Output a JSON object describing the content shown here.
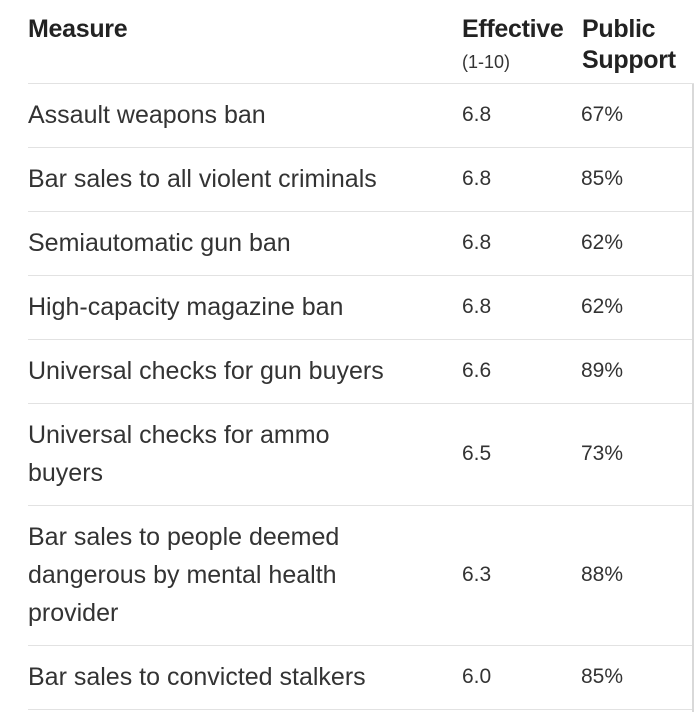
{
  "table": {
    "headers": {
      "measure": "Measure",
      "effective": "Effective",
      "effective_scale": "(1-10)",
      "public_support": "Public Support"
    },
    "rows": [
      {
        "measure": "Assault weapons ban",
        "effective": "6.8",
        "support": "67%"
      },
      {
        "measure": "Bar sales to all violent criminals",
        "effective": "6.8",
        "support": "85%"
      },
      {
        "measure": "Semiautomatic gun ban",
        "effective": "6.8",
        "support": "62%"
      },
      {
        "measure": "High-capacity magazine ban",
        "effective": "6.8",
        "support": "62%"
      },
      {
        "measure": "Universal checks for gun buyers",
        "effective": "6.6",
        "support": "89%"
      },
      {
        "measure": "Universal checks for ammo buyers",
        "effective": "6.5",
        "support": "73%"
      },
      {
        "measure": "Bar sales to people deemed dangerous by mental health provider",
        "effective": "6.3",
        "support": "88%"
      },
      {
        "measure": "Bar sales to convicted stalkers",
        "effective": "6.0",
        "support": "85%"
      }
    ]
  }
}
